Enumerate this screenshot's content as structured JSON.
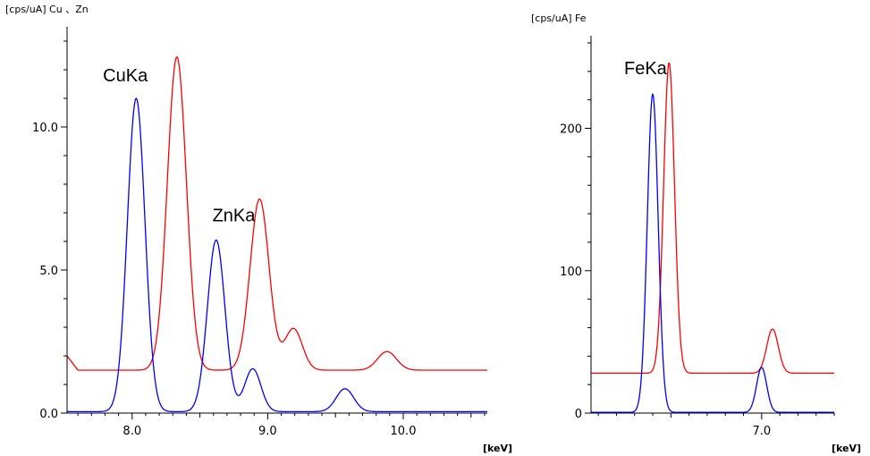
{
  "chart_data": [
    {
      "type": "line",
      "ylabel": "[cps/uA] Cu 、Zn",
      "xunit": "[keV]",
      "xlim": [
        7.52,
        10.62
      ],
      "ylim": [
        0,
        13.5
      ],
      "xticks": [
        8.0,
        9.0,
        10.0
      ],
      "xtick_labels": [
        "8.0",
        "9.0",
        "10.0"
      ],
      "yticks": [
        0,
        5,
        10
      ],
      "ytick_labels": [
        "0.0",
        "5.0",
        "10.0"
      ],
      "annotations": [
        {
          "text": "CuKa",
          "x": 7.95,
          "y": 11.6
        },
        {
          "text": "ZnKa",
          "x": 8.75,
          "y": 6.7
        }
      ],
      "series": [
        {
          "color": "#ff0000",
          "baseline": 1.5,
          "peaks": [
            {
              "center": 8.33,
              "height": 12.45,
              "sigma": 0.07
            },
            {
              "center": 8.94,
              "height": 7.48,
              "sigma": 0.07
            },
            {
              "center": 9.19,
              "height": 2.95,
              "sigma": 0.065
            },
            {
              "center": 9.88,
              "height": 2.15,
              "sigma": 0.07
            }
          ],
          "start_value": 2.0
        },
        {
          "color": "#0000ff",
          "baseline": 0.05,
          "peaks": [
            {
              "center": 8.03,
              "height": 11.0,
              "sigma": 0.065
            },
            {
              "center": 8.62,
              "height": 6.05,
              "sigma": 0.065
            },
            {
              "center": 8.89,
              "height": 1.55,
              "sigma": 0.06
            },
            {
              "center": 9.57,
              "height": 0.85,
              "sigma": 0.065
            }
          ]
        }
      ]
    },
    {
      "type": "line",
      "ylabel": "[cps/uA] Fe",
      "xunit": "[keV]",
      "xlim": [
        6.06,
        7.4
      ],
      "ylim": [
        0,
        265
      ],
      "xticks": [
        7.0
      ],
      "xtick_labels": [
        "7.0"
      ],
      "yticks": [
        0,
        100,
        200
      ],
      "ytick_labels": [
        "0",
        "100",
        "200"
      ],
      "annotations": [
        {
          "text": "FeKa",
          "x": 6.36,
          "y": 238
        }
      ],
      "series": [
        {
          "color": "#ff0000",
          "baseline": 28,
          "peaks": [
            {
              "center": 6.49,
              "height": 246,
              "sigma": 0.03
            },
            {
              "center": 7.06,
              "height": 59,
              "sigma": 0.032
            }
          ]
        },
        {
          "color": "#0000ff",
          "baseline": 0.5,
          "peaks": [
            {
              "center": 6.4,
              "height": 224,
              "sigma": 0.03
            },
            {
              "center": 7.0,
              "height": 32,
              "sigma": 0.028
            }
          ]
        }
      ]
    }
  ]
}
